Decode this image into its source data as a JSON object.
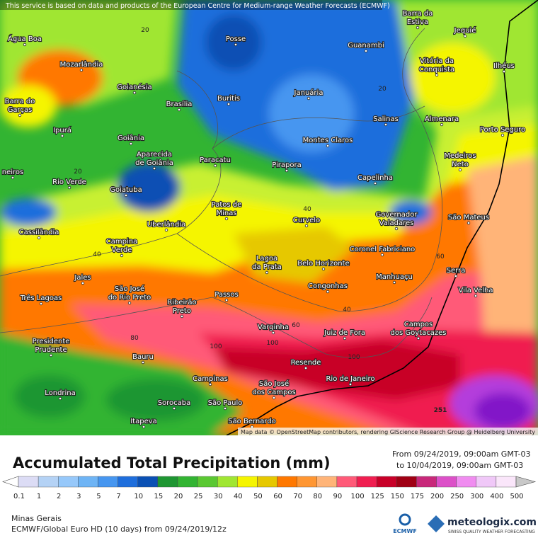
{
  "notice": "This service is based on data and products of the European Centre for Medium-range Weather Forecasts (ECMWF)",
  "attribution": "Map data © OpenStreetMap contributors, rendering GIScience Research Group @ Heidelberg University",
  "cities": [
    [
      "Água Boa"
    ],
    [
      "Mozarlândia"
    ],
    [
      "Goianésia"
    ],
    [
      "Barra do",
      "Garças"
    ],
    [
      "Brasília"
    ],
    [
      "Buritis"
    ],
    [
      "Januária"
    ],
    [
      "Posse"
    ],
    [
      "Guanambi"
    ],
    [
      "Barra da",
      "Estiva"
    ],
    [
      "Jequié"
    ],
    [
      "Vitória da",
      "Conquista"
    ],
    [
      "Ilhéus"
    ],
    [
      "Salinas"
    ],
    [
      "Almenara"
    ],
    [
      "Porto Seguro"
    ],
    [
      "Ipurá"
    ],
    [
      "Goiânia"
    ],
    [
      "Aparecida",
      "de Goiânia"
    ],
    [
      "Montes Claros"
    ],
    [
      "Medeiros",
      "Neto"
    ],
    [
      "Paracatu"
    ],
    [
      "Pirapora"
    ],
    [
      "Capelinha"
    ],
    [
      "neiros"
    ],
    [
      "Rio Verde"
    ],
    [
      "Goiatuba"
    ],
    [
      "Patos de",
      "Minas"
    ],
    [
      "Governador",
      "Valadares"
    ],
    [
      "São Mateus"
    ],
    [
      "Curvelo"
    ],
    [
      "Uberlândia"
    ],
    [
      "Cassilândia"
    ],
    [
      "Campina",
      "Verde"
    ],
    [
      "Coronel Fabriciano"
    ],
    [
      "Lagoa",
      "da Prata"
    ],
    [
      "Belo Horizonte"
    ],
    [
      "Serra"
    ],
    [
      "Manhuaçu"
    ],
    [
      "Jales"
    ],
    [
      "Vila Velha"
    ],
    [
      "Congonhas"
    ],
    [
      "São José",
      "do Rio Preto"
    ],
    [
      "Ribeirão",
      "Preto"
    ],
    [
      "Passos"
    ],
    [
      "Três Lagoas"
    ],
    [
      "Campos",
      "dos Goytacazes"
    ],
    [
      "Varginha"
    ],
    [
      "Juiz de Fora"
    ],
    [
      "Presidente",
      "Prudente"
    ],
    [
      "Bauru"
    ],
    [
      "Resende"
    ],
    [
      "Campinas"
    ],
    [
      "Rio de Janeiro"
    ],
    [
      "São José",
      "dos Campos"
    ],
    [
      "Londrina"
    ],
    [
      "Sorocaba"
    ],
    [
      "São Paulo"
    ],
    [
      "Itapeva"
    ],
    [
      "São Bernardo"
    ]
  ],
  "contour_labels": [
    20,
    20,
    20,
    40,
    40,
    40,
    60,
    60,
    80,
    100,
    100,
    100,
    251
  ],
  "title": "Accumulated Total Precipitation (mm)",
  "period": {
    "from": "From 09/24/2019, 09:00am GMT-03",
    "to": "to 10/04/2019, 09:00am GMT-03"
  },
  "scale": [
    {
      "value": 0.1,
      "color": "#dcdcf5"
    },
    {
      "value": 1,
      "color": "#b4d2f5"
    },
    {
      "value": 2,
      "color": "#96c8fa"
    },
    {
      "value": 3,
      "color": "#6eb4f5"
    },
    {
      "value": 5,
      "color": "#4696f0"
    },
    {
      "value": 7,
      "color": "#1e6edc"
    },
    {
      "value": 10,
      "color": "#0a50b4"
    },
    {
      "value": 15,
      "color": "#1e9632"
    },
    {
      "value": 20,
      "color": "#32b432"
    },
    {
      "value": 25,
      "color": "#5ac832"
    },
    {
      "value": 30,
      "color": "#a0e632"
    },
    {
      "value": 40,
      "color": "#f5f500"
    },
    {
      "value": 50,
      "color": "#e6c800"
    },
    {
      "value": 60,
      "color": "#ff7800"
    },
    {
      "value": 70,
      "color": "#ff9632"
    },
    {
      "value": 80,
      "color": "#ffb478"
    },
    {
      "value": 90,
      "color": "#ff5a78"
    },
    {
      "value": 100,
      "color": "#f01e50"
    },
    {
      "value": 125,
      "color": "#c80028"
    },
    {
      "value": 150,
      "color": "#a00014"
    },
    {
      "value": 175,
      "color": "#c8287a"
    },
    {
      "value": 200,
      "color": "#dc50c8"
    },
    {
      "value": 250,
      "color": "#f08cf0"
    },
    {
      "value": 300,
      "color": "#f0c8f8"
    },
    {
      "value": 400,
      "color": "#fae6fa"
    },
    {
      "value": 500,
      "color": "#c8c8c8"
    }
  ],
  "region": "Minas Gerais",
  "model": "ECMWF/Global Euro HD (10 days) from 09/24/2019/12z",
  "logos": {
    "ecmwf": "ECMWF",
    "meteologix": "meteologix.com",
    "tagline": "SWISS QUALITY WEATHER FORECASTING"
  }
}
